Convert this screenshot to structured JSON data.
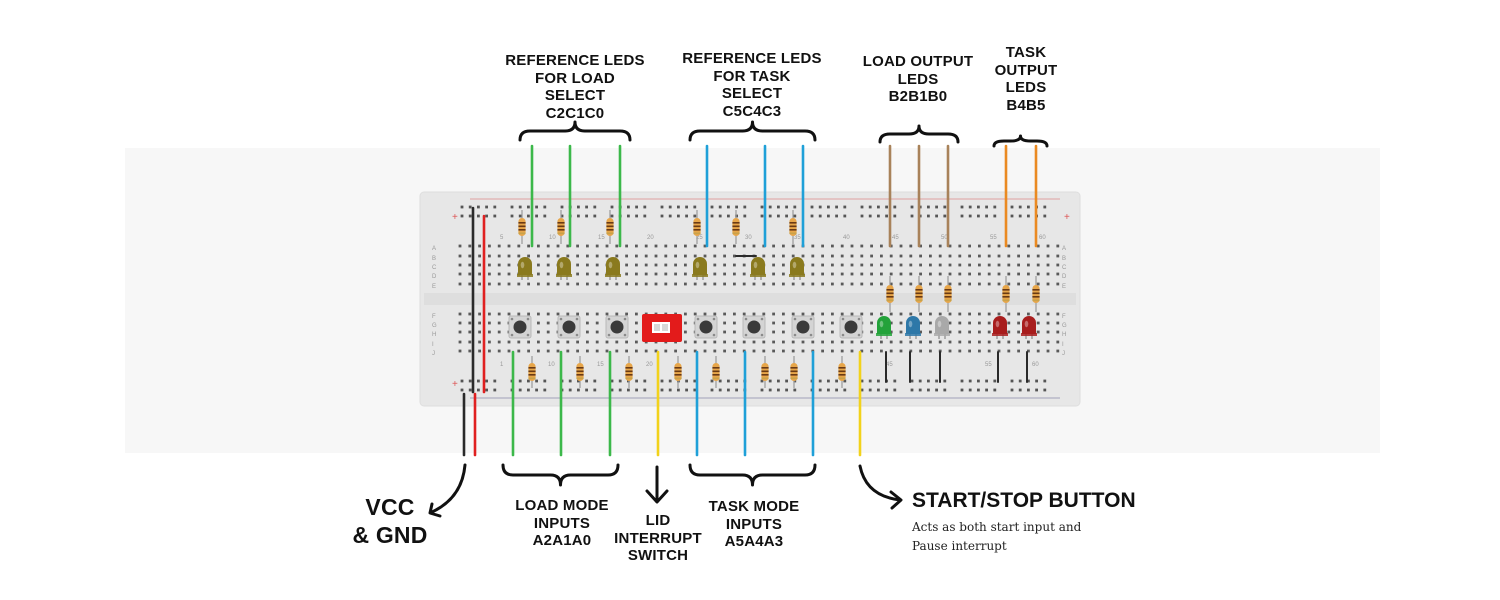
{
  "labels": {
    "ref_load": [
      "REFERENCE LEDS",
      "FOR LOAD SELECT",
      "C2C1C0"
    ],
    "ref_task": [
      "REFERENCE LEDS",
      "FOR TASK SELECT",
      "C5C4C3"
    ],
    "load_out": [
      "LOAD OUTPUT",
      "LEDS",
      "B2B1B0"
    ],
    "task_out": [
      "TASK",
      "OUTPUT",
      "LEDS",
      "B4B5"
    ],
    "vcc": [
      "VCC",
      "& GND"
    ],
    "load_mode": [
      "LOAD MODE",
      "INPUTS",
      "A2A1A0"
    ],
    "lid": [
      "LID",
      "INTERRUPT",
      "SWITCH"
    ],
    "task_mode": [
      "TASK MODE",
      "INPUTS",
      "A5A4A3"
    ],
    "start_stop": "START/STOP BUTTON",
    "start_desc": [
      "Acts as both start input and",
      "Pause interrupt"
    ]
  },
  "breadboard": {
    "row_letters_top": [
      "A",
      "B",
      "C",
      "D",
      "E"
    ],
    "row_letters_bottom": [
      "F",
      "G",
      "H",
      "I",
      "J"
    ],
    "column_numbers_top": [
      "5",
      "10",
      "15",
      "20",
      "25",
      "30",
      "35",
      "40",
      "45",
      "50",
      "55",
      "60"
    ],
    "column_numbers_bottom": [
      "1",
      "10",
      "15",
      "20",
      "45",
      "55",
      "60"
    ],
    "rail_symbols": [
      "+",
      "−"
    ]
  },
  "colors": {
    "page": "#ffffff",
    "panel": "#f7f7f7",
    "board": "#e7e7e7",
    "wire_green": "#3cb84a",
    "wire_blue": "#1fa0d8",
    "wire_brown": "#a8825a",
    "wire_orange": "#ea8a22",
    "wire_yellow": "#f2d21b",
    "wire_red": "#e02020",
    "wire_black": "#2a2a2a",
    "led_reference": "#8a7a1e",
    "led_green": "#23a23a",
    "led_blue": "#2e78a8",
    "led_gray": "#a9a9a9",
    "led_red": "#a81d1d",
    "lid_switch": "#e31b1b"
  }
}
